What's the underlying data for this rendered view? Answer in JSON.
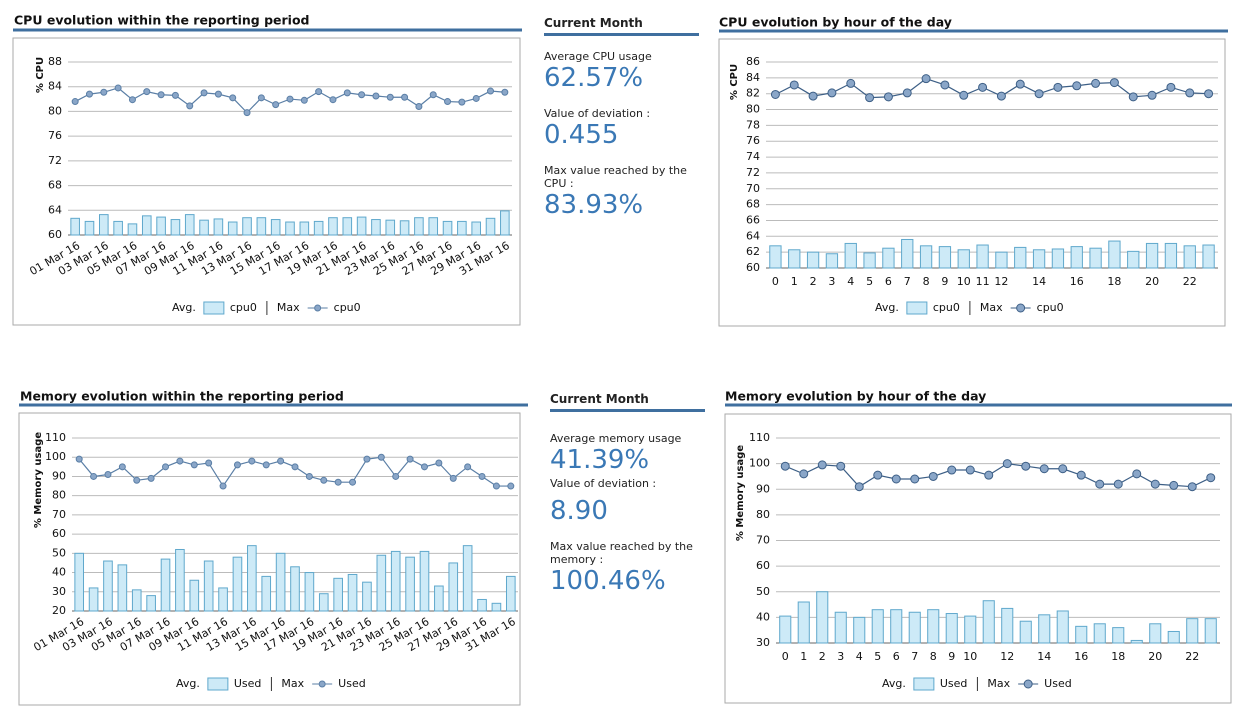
{
  "chart_data": [
    {
      "type": "combo",
      "title": "CPU evolution within the reporting period",
      "y_label": "% CPU",
      "categories": [
        "01 Mar 16",
        null,
        "03 Mar 16",
        null,
        "05 Mar 16",
        null,
        "07 Mar 16",
        null,
        "09 Mar 16",
        null,
        "11 Mar 16",
        null,
        "13 Mar 16",
        null,
        "15 Mar 16",
        null,
        "17 Mar 16",
        null,
        "19 Mar 16",
        null,
        "21 Mar 16",
        null,
        "23 Mar 16",
        null,
        "25 Mar 16",
        null,
        "27 Mar 16",
        null,
        "29 Mar 16",
        null,
        "31 Mar 16"
      ],
      "series": [
        {
          "name": "cpu0",
          "legend_group": "Avg.",
          "type": "bar",
          "color": "#cdeaf7",
          "values": [
            62.7,
            62.2,
            63.3,
            62.2,
            61.8,
            63.1,
            62.9,
            62.5,
            63.3,
            62.4,
            62.6,
            62.1,
            62.8,
            62.8,
            62.5,
            62.1,
            62.1,
            62.2,
            62.8,
            62.8,
            62.9,
            62.5,
            62.4,
            62.3,
            62.8,
            62.8,
            62.2,
            62.2,
            62.1,
            62.7,
            63.9
          ]
        },
        {
          "name": "cpu0",
          "legend_group": "Max",
          "type": "line",
          "color": "#5b7fa6",
          "values": [
            81.6,
            82.8,
            83.1,
            83.8,
            81.9,
            83.2,
            82.7,
            82.6,
            80.9,
            83.0,
            82.8,
            82.2,
            79.8,
            82.2,
            81.1,
            82.0,
            81.8,
            83.2,
            81.9,
            83.0,
            82.7,
            82.5,
            82.3,
            82.3,
            80.8,
            82.7,
            81.6,
            81.5,
            82.1,
            83.3,
            83.1
          ]
        }
      ],
      "ylim": [
        60,
        88
      ],
      "yticks": [
        60,
        64,
        68,
        72,
        76,
        80,
        84,
        88
      ],
      "grid": true
    },
    {
      "type": "combo",
      "title": "CPU evolution by hour of the day",
      "y_label": "% CPU",
      "categories": [
        "0",
        "1",
        "2",
        "3",
        "4",
        "5",
        "6",
        "7",
        "8",
        "9",
        "10",
        "11",
        "12",
        null,
        "14",
        null,
        "16",
        null,
        "18",
        null,
        "20",
        null,
        "22",
        null
      ],
      "series": [
        {
          "name": "cpu0",
          "legend_group": "Avg.",
          "type": "bar",
          "color": "#cdeaf7",
          "values": [
            62.8,
            62.3,
            62.0,
            61.8,
            63.1,
            61.9,
            62.5,
            63.6,
            62.8,
            62.7,
            62.3,
            62.9,
            62.0,
            62.6,
            62.3,
            62.4,
            62.7,
            62.5,
            63.4,
            62.1,
            63.1,
            63.1,
            62.8,
            62.9
          ]
        },
        {
          "name": "cpu0",
          "legend_group": "Max",
          "type": "line",
          "color": "#3d5f86",
          "values": [
            81.9,
            83.1,
            81.7,
            82.1,
            83.3,
            81.5,
            81.6,
            82.1,
            83.9,
            83.1,
            81.8,
            82.8,
            81.7,
            83.2,
            82.0,
            82.8,
            83.0,
            83.3,
            83.4,
            81.6,
            81.8,
            82.8,
            82.1,
            82.0
          ]
        }
      ],
      "ylim": [
        60,
        86
      ],
      "yticks": [
        60,
        62,
        64,
        66,
        68,
        70,
        72,
        74,
        76,
        78,
        80,
        82,
        84,
        86
      ],
      "grid": true
    },
    {
      "type": "combo",
      "title": "Memory evolution within the reporting period",
      "y_label": "% Memory usage",
      "categories": [
        "01 Mar 16",
        null,
        "03 Mar 16",
        null,
        "05 Mar 16",
        null,
        "07 Mar 16",
        null,
        "09 Mar 16",
        null,
        "11 Mar 16",
        null,
        "13 Mar 16",
        null,
        "15 Mar 16",
        null,
        "17 Mar 16",
        null,
        "19 Mar 16",
        null,
        "21 Mar 16",
        null,
        "23 Mar 16",
        null,
        "25 Mar 16",
        null,
        "27 Mar 16",
        null,
        "29 Mar 16",
        null,
        "31 Mar 16"
      ],
      "series": [
        {
          "name": "Used",
          "legend_group": "Avg.",
          "type": "bar",
          "color": "#cdeaf7",
          "values": [
            50,
            32,
            46,
            44,
            31,
            28,
            47,
            52,
            36,
            46,
            32,
            48,
            54,
            38,
            50,
            43,
            40,
            29,
            37,
            39,
            35,
            49,
            51,
            48,
            51,
            33,
            45,
            54,
            26,
            24,
            38
          ]
        },
        {
          "name": "Used",
          "legend_group": "Max",
          "type": "line",
          "color": "#5b7fa6",
          "values": [
            99,
            90,
            91,
            95,
            88,
            89,
            95,
            98,
            96,
            97,
            85,
            96,
            98,
            96,
            98,
            95,
            90,
            88,
            87,
            87,
            99,
            100,
            90,
            99,
            95,
            97,
            89,
            95,
            90,
            85,
            85
          ]
        }
      ],
      "ylim": [
        20,
        110
      ],
      "yticks": [
        20,
        30,
        40,
        50,
        60,
        70,
        80,
        90,
        100,
        110
      ],
      "grid": true
    },
    {
      "type": "combo",
      "title": "Memory evolution by hour of the day",
      "y_label": "% Memory usage",
      "categories": [
        "0",
        "1",
        "2",
        "3",
        "4",
        "5",
        "6",
        "7",
        "8",
        "9",
        "10",
        null,
        "12",
        null,
        "14",
        null,
        "16",
        null,
        "18",
        null,
        "20",
        null,
        "22",
        null
      ],
      "series": [
        {
          "name": "Used",
          "legend_group": "Avg.",
          "type": "bar",
          "color": "#cdeaf7",
          "values": [
            40.5,
            46,
            50,
            42,
            40,
            43,
            43,
            42,
            43,
            41.5,
            40.5,
            46.5,
            43.5,
            38.5,
            41,
            42.5,
            36.5,
            37.5,
            36,
            31,
            37.5,
            34.5,
            39.5,
            39.5
          ]
        },
        {
          "name": "Used",
          "legend_group": "Max",
          "type": "line",
          "color": "#3d5f86",
          "values": [
            99,
            96,
            99.5,
            99,
            91,
            95.5,
            94,
            94,
            95,
            97.5,
            97.5,
            95.5,
            100,
            99,
            98,
            98,
            95.5,
            92,
            92,
            96,
            92,
            91.5,
            91,
            94.5
          ]
        }
      ],
      "ylim": [
        30,
        110
      ],
      "yticks": [
        30,
        40,
        50,
        60,
        70,
        80,
        90,
        100,
        110
      ],
      "grid": true
    }
  ],
  "stats": [
    {
      "title": "Current Month",
      "items": [
        {
          "label": "Average CPU usage",
          "value": "62.57%"
        },
        {
          "label": "Value of deviation :",
          "value": "0.455"
        },
        {
          "label": "Max value reached by the CPU :",
          "value": "83.93%"
        }
      ]
    },
    {
      "title": "Current Month",
      "items": [
        {
          "label": "Average memory usage",
          "value": "41.39%"
        },
        {
          "label": "Value of deviation :",
          "value": "8.90"
        },
        {
          "label": "Max value reached by the memory :",
          "value": "100.46%"
        }
      ]
    }
  ]
}
